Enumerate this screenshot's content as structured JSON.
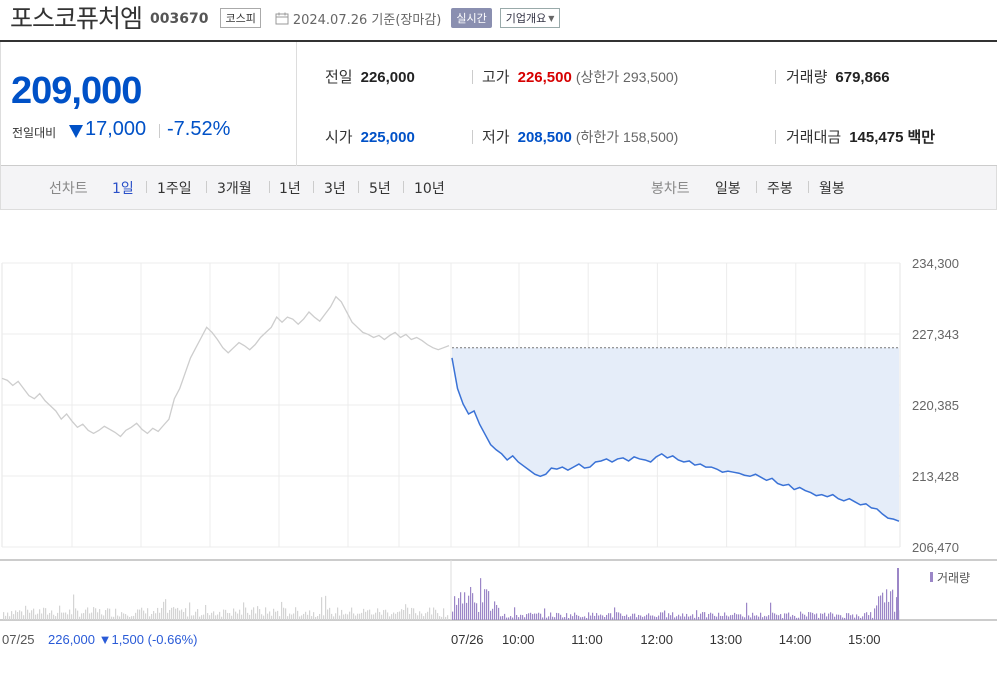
{
  "header": {
    "name": "포스코퓨처엠",
    "code": "003670",
    "market": "코스피",
    "base_date": "2024.07.26 기준(장마감)",
    "realtime_label": "실시간",
    "overview_label": "기업개요"
  },
  "price": {
    "current": "209,000",
    "change_label": "전일대비",
    "change_amount": "17,000",
    "change_pct": "-7.52%"
  },
  "stats": {
    "prev_close_label": "전일",
    "prev_close": "226,000",
    "high_label": "고가",
    "high": "226,500",
    "upper_limit": "(상한가 293,500)",
    "volume_label": "거래량",
    "volume": "679,866",
    "open_label": "시가",
    "open": "225,000",
    "low_label": "저가",
    "low": "208,500",
    "lower_limit": "(하한가 158,500)",
    "amount_label": "거래대금",
    "amount": "145,475",
    "amount_unit": "백만"
  },
  "tabs": {
    "line_label": "선차트",
    "line_tabs": [
      "1일",
      "1주일",
      "3개월",
      "1년",
      "3년",
      "5년",
      "10년"
    ],
    "active_tab": "1일",
    "candle_label": "봉차트",
    "candle_tabs": [
      "일봉",
      "주봉",
      "월봉"
    ]
  },
  "chart_data": {
    "type": "line",
    "y_ticks": [
      "234,300",
      "227,343",
      "220,385",
      "213,428",
      "206,470"
    ],
    "ylim": [
      206470,
      234300
    ],
    "x_ticks": [
      "07/26",
      "10:00",
      "11:00",
      "12:00",
      "13:00",
      "14:00",
      "15:00"
    ],
    "prev_day_label": "07/25",
    "prev_day_summary": "226,000 ▼1,500 (-0.66%)",
    "volume_legend": "거래량",
    "reference_line": 226000,
    "series": [
      {
        "values": [
          223000,
          222800,
          222300,
          222700,
          222000,
          221300,
          221000,
          221500,
          220800,
          220300,
          219800,
          219000,
          219500,
          218800,
          218200,
          218500,
          217900,
          217600,
          217900,
          218300,
          218000,
          217700,
          217300,
          217900,
          218200,
          218600,
          218000,
          217600,
          218100,
          217800,
          218400,
          219000,
          221000,
          222000,
          223500,
          225000,
          226000,
          227000,
          228000,
          227500,
          226800,
          226000,
          225500,
          226000,
          226500,
          226200,
          225800,
          226300,
          227000,
          227500,
          228000,
          229000,
          228500,
          229000,
          228800,
          228300,
          228800,
          229500,
          229000,
          228600,
          229300,
          230000,
          231000,
          230500,
          229500,
          228500,
          228000,
          227500,
          227300,
          227000,
          227200,
          226800,
          227200,
          227500,
          227000,
          227300,
          226800,
          227000,
          226700,
          226300,
          226000,
          225800,
          226000,
          226200
        ]
      },
      {
        "values": [
          225000,
          222000,
          220500,
          219500,
          219800,
          218500,
          217500,
          216500,
          216000,
          215600,
          215000,
          215400,
          214800,
          214400,
          214000,
          213600,
          213400,
          213600,
          214200,
          214100,
          214300,
          214000,
          214300,
          214600,
          214200,
          214300,
          214800,
          214900,
          215100,
          214800,
          215100,
          215200,
          214900,
          215300,
          215100,
          215000,
          214800,
          215300,
          215600,
          215200,
          215400,
          215000,
          214800,
          214900,
          214500,
          214600,
          214300,
          214300,
          214100,
          213800,
          213900,
          213800,
          213700,
          213500,
          213400,
          213600,
          213300,
          213000,
          213200,
          212700,
          212500,
          212600,
          212100,
          212300,
          212000,
          211800,
          211500,
          211600,
          211400,
          211600,
          211200,
          211000,
          211200,
          210900,
          210600,
          210700,
          210300,
          210200,
          209700,
          209300,
          209200,
          209000
        ]
      }
    ]
  }
}
